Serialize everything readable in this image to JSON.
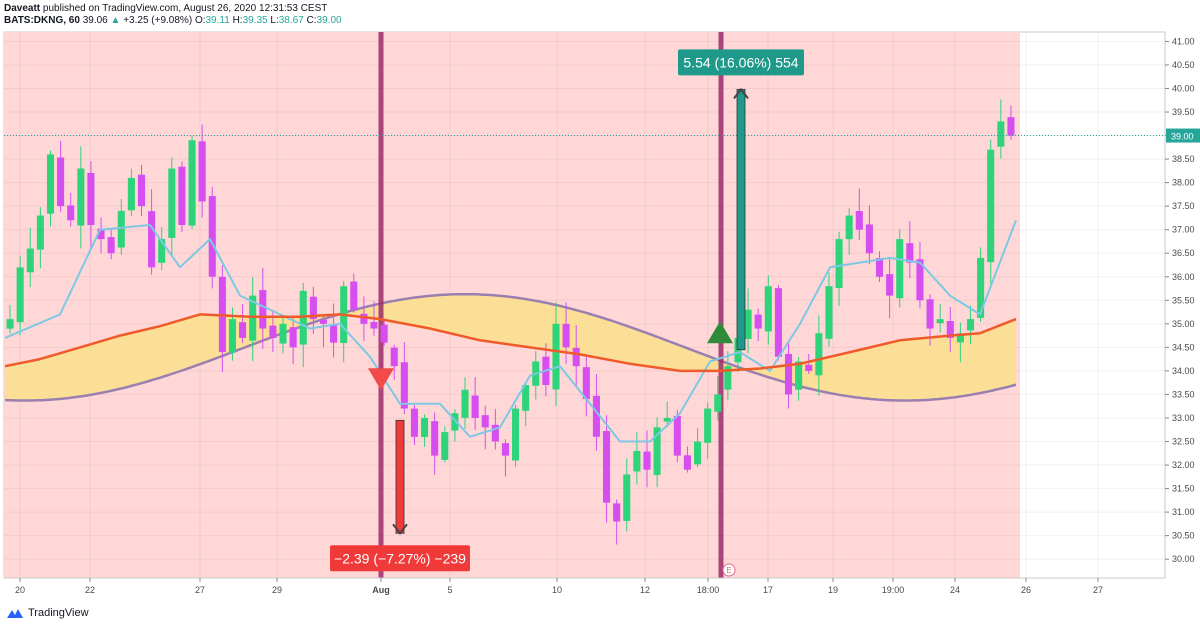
{
  "header": {
    "author": "Daveatt",
    "published_text": "published on TradingView.com, August 26, 2020 12:31:53 CEST",
    "symbol": "BATS:DKNG, 60",
    "last": "39.06",
    "change": "+3.25 (+9.08%)",
    "ohlc": [
      {
        "label": "O:",
        "value": "39.11"
      },
      {
        "label": "H:",
        "value": "39.35"
      },
      {
        "label": "L:",
        "value": "38.67"
      },
      {
        "label": "C:",
        "value": "39.00"
      }
    ]
  },
  "footer": {
    "brand": "TradingView"
  },
  "colors": {
    "bg_shade": "#ffd7d7",
    "up": "#2ed47a",
    "down": "#d64ef0",
    "ma_fast": "#7ec8e3",
    "ma_slow": "#ef5a2a",
    "cloud": "#fbe08c",
    "sine": "#9a7fb0",
    "vline": "#9c2a6a",
    "price_line": "#26a69a",
    "green_label": "#1f9a8a",
    "red_label": "#f03a3a"
  },
  "chart_data": {
    "type": "candlestick",
    "symbol": "BATS:DKNG",
    "interval": "60",
    "xlim": [
      0,
      1160
    ],
    "ylim": [
      29.6,
      41.2
    ],
    "y_ticks": [
      "41.00",
      "40.50",
      "40.00",
      "39.50",
      "39.00",
      "38.50",
      "38.00",
      "37.50",
      "37.00",
      "36.50",
      "36.00",
      "35.50",
      "35.00",
      "34.50",
      "34.00",
      "33.50",
      "33.00",
      "32.50",
      "32.00",
      "31.50",
      "31.00",
      "30.50",
      "30.00"
    ],
    "x_ticks": [
      {
        "x": 20,
        "label": "20"
      },
      {
        "x": 90,
        "label": "22"
      },
      {
        "x": 200,
        "label": "27"
      },
      {
        "x": 277,
        "label": "29"
      },
      {
        "x": 381,
        "label": "Aug",
        "bold": true
      },
      {
        "x": 450,
        "label": "5"
      },
      {
        "x": 557,
        "label": "10"
      },
      {
        "x": 645,
        "label": "12"
      },
      {
        "x": 708,
        "label": "18:00"
      },
      {
        "x": 768,
        "label": "17"
      },
      {
        "x": 833,
        "label": "19"
      },
      {
        "x": 893,
        "label": "19:00"
      },
      {
        "x": 955,
        "label": "24"
      },
      {
        "x": 1026,
        "label": "26"
      },
      {
        "x": 1098,
        "label": "27"
      }
    ],
    "last_price": {
      "value": 39.0,
      "label": "39.00"
    },
    "shaded_region_x": [
      0,
      1016
    ],
    "vertical_lines_x": [
      381,
      721
    ],
    "earnings_marker": {
      "x": 729,
      "label": "E"
    },
    "candles_xrange": [
      5,
      1016
    ],
    "candle_seed_closes": [
      35.1,
      36.2,
      36.6,
      37.3,
      38.6,
      37.5,
      37.2,
      38.3,
      37.1,
      36.8,
      36.5,
      37.4,
      38.1,
      37.5,
      36.2,
      36.8,
      38.3,
      37.1,
      38.9,
      37.6,
      36.0,
      34.4,
      35.1,
      34.7,
      35.6,
      34.9,
      34.7,
      35.0,
      34.5,
      35.7,
      35.1,
      35.0,
      34.6,
      35.8,
      35.3,
      35.0,
      34.9,
      34.6,
      34.1,
      33.2,
      32.6,
      33.0,
      32.2,
      32.7,
      33.1,
      33.6,
      33.0,
      32.8,
      32.5,
      32.2,
      33.2,
      33.7,
      34.2,
      33.7,
      35.0,
      34.5,
      34.1,
      33.4,
      32.6,
      31.2,
      30.8,
      31.8,
      32.3,
      31.9,
      32.8,
      33.0,
      32.2,
      31.9,
      32.5,
      33.2,
      33.5,
      34.1,
      34.7,
      35.3,
      34.9,
      35.8,
      34.3,
      33.5,
      34.2,
      34.0,
      34.8,
      35.8,
      36.8,
      37.3,
      37.0,
      36.5,
      36.0,
      35.6,
      36.8,
      36.3,
      35.5,
      34.9,
      35.1,
      34.7,
      34.8,
      35.1,
      36.4,
      38.7,
      39.3,
      39.0
    ],
    "ma_fast": {
      "x": [
        5,
        60,
        100,
        150,
        180,
        210,
        240,
        280,
        310,
        340,
        370,
        400,
        440,
        470,
        500,
        530,
        560,
        590,
        620,
        650,
        680,
        710,
        740,
        770,
        800,
        830,
        860,
        890,
        920,
        950,
        980,
        1016
      ],
      "y": [
        34.7,
        35.2,
        37.0,
        37.1,
        36.2,
        36.8,
        35.6,
        35.2,
        34.9,
        35.0,
        34.3,
        33.3,
        33.3,
        32.6,
        32.8,
        33.9,
        34.1,
        33.3,
        32.5,
        32.5,
        33.1,
        34.2,
        34.4,
        34.0,
        35.0,
        36.2,
        36.3,
        36.4,
        36.3,
        35.6,
        35.2,
        37.2
      ]
    },
    "ma_slow": {
      "x": [
        5,
        40,
        80,
        120,
        160,
        200,
        250,
        300,
        340,
        380,
        430,
        480,
        530,
        580,
        630,
        680,
        720,
        760,
        800,
        850,
        900,
        950,
        980,
        1016
      ],
      "y": [
        34.1,
        34.25,
        34.5,
        34.75,
        34.95,
        35.2,
        35.15,
        35.15,
        35.2,
        35.1,
        34.9,
        34.65,
        34.5,
        34.35,
        34.15,
        34.0,
        34.0,
        34.05,
        34.15,
        34.4,
        34.65,
        34.75,
        34.8,
        35.1
      ]
    },
    "sine_wave": {
      "amplitude": 1.13,
      "mid": 34.5,
      "period_px": 880,
      "peak_x": 465
    },
    "measures": [
      {
        "direction": "down",
        "x": 400,
        "from": 32.95,
        "to": 30.55,
        "label": "−2.39 (−7.27%) −239",
        "color": "#f03a3a"
      },
      {
        "direction": "up",
        "x": 741,
        "from": 34.45,
        "to": 39.98,
        "label": "5.54 (16.06%) 554",
        "color": "#1f9a8a"
      }
    ],
    "signals": [
      {
        "type": "sell",
        "x": 381,
        "y": 33.8
      },
      {
        "type": "buy",
        "x": 720,
        "y": 34.8
      }
    ]
  }
}
